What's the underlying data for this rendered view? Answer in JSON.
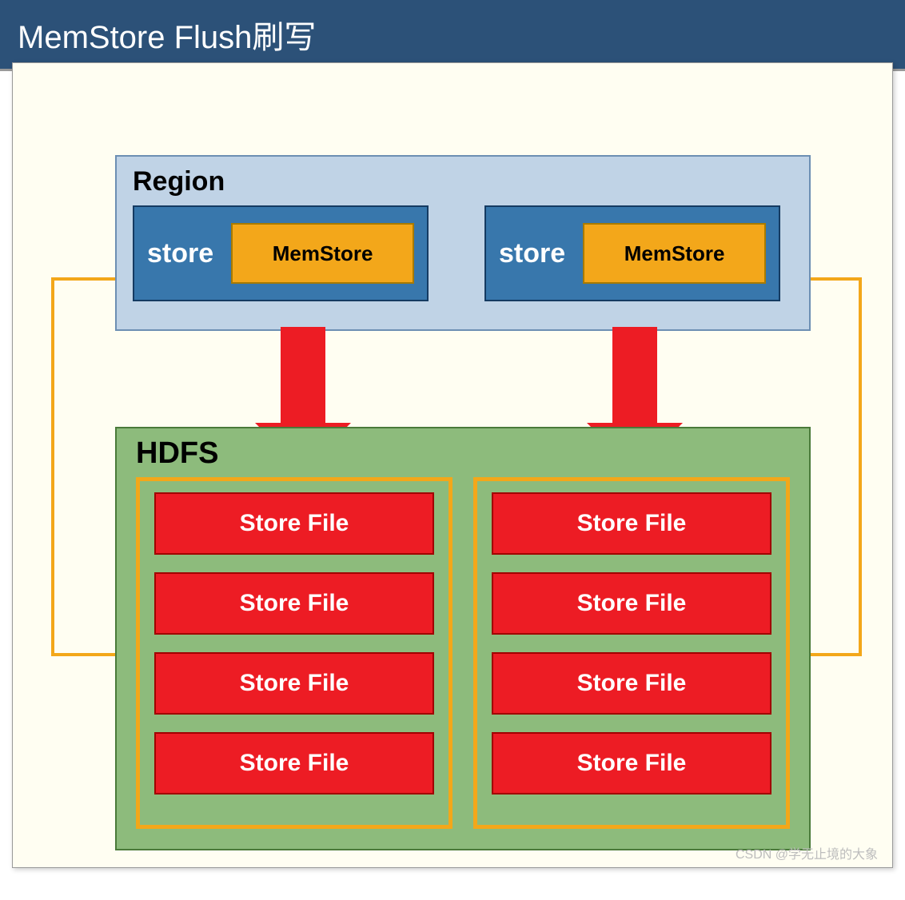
{
  "header": {
    "title": "MemStore Flush刷写",
    "background": "#2c5178",
    "color": "#ffffff"
  },
  "canvas": {
    "background": "#fffef2"
  },
  "region": {
    "label": "Region",
    "background": "#c0d3e6",
    "border": "#6d8fb3",
    "stores": [
      {
        "label": "store",
        "bg": "#3877ac",
        "mem": {
          "label": "MemStore",
          "bg": "#f3a71a"
        }
      },
      {
        "label": "store",
        "bg": "#3877ac",
        "mem": {
          "label": "MemStore",
          "bg": "#f3a71a"
        }
      }
    ]
  },
  "arrows": {
    "color": "#ed1c24",
    "positions": [
      335,
      750
    ]
  },
  "hdfs": {
    "label": "HDFS",
    "background": "#8dbb7c",
    "border": "#4a7a3a",
    "groupBorder": "#f3a71a",
    "fileBg": "#ed1c24",
    "fileLabel": "Store File",
    "groups": [
      4,
      4
    ]
  },
  "connectors": {
    "color": "#f3a71a",
    "width": 4
  },
  "watermark": "CSDN @学无止境的大象"
}
